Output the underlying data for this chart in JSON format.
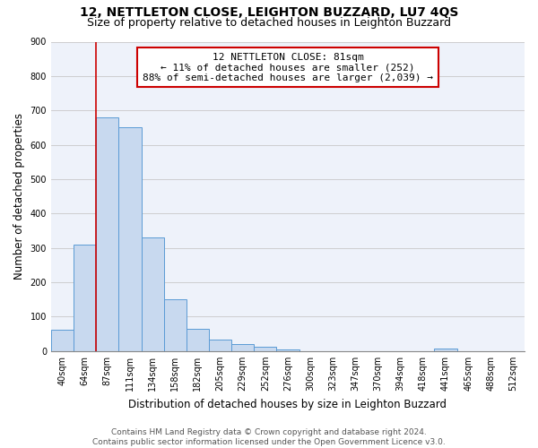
{
  "title_line1": "12, NETTLETON CLOSE, LEIGHTON BUZZARD, LU7 4QS",
  "title_line2": "Size of property relative to detached houses in Leighton Buzzard",
  "xlabel": "Distribution of detached houses by size in Leighton Buzzard",
  "ylabel": "Number of detached properties",
  "categories": [
    "40sqm",
    "64sqm",
    "87sqm",
    "111sqm",
    "134sqm",
    "158sqm",
    "182sqm",
    "205sqm",
    "229sqm",
    "252sqm",
    "276sqm",
    "300sqm",
    "323sqm",
    "347sqm",
    "370sqm",
    "394sqm",
    "418sqm",
    "441sqm",
    "465sqm",
    "488sqm",
    "512sqm"
  ],
  "values": [
    62,
    310,
    680,
    650,
    330,
    150,
    65,
    33,
    20,
    12,
    5,
    0,
    0,
    0,
    0,
    0,
    0,
    8,
    0,
    0,
    0
  ],
  "bar_color": "#c8d9ef",
  "bar_edge_color": "#5b9bd5",
  "vline_x": 1.5,
  "vline_color": "#cc0000",
  "annotation_text_line1": "12 NETTLETON CLOSE: 81sqm",
  "annotation_text_line2": "← 11% of detached houses are smaller (252)",
  "annotation_text_line3": "88% of semi-detached houses are larger (2,039) →",
  "annotation_box_color": "#cc0000",
  "ylim": [
    0,
    900
  ],
  "yticks": [
    0,
    100,
    200,
    300,
    400,
    500,
    600,
    700,
    800,
    900
  ],
  "footer_line1": "Contains HM Land Registry data © Crown copyright and database right 2024.",
  "footer_line2": "Contains public sector information licensed under the Open Government Licence v3.0.",
  "background_color": "#eef2fa",
  "grid_color": "#c8c8c8",
  "title_fontsize": 10,
  "subtitle_fontsize": 9,
  "axis_label_fontsize": 8.5,
  "tick_fontsize": 7,
  "annotation_fontsize": 8,
  "footer_fontsize": 6.5
}
